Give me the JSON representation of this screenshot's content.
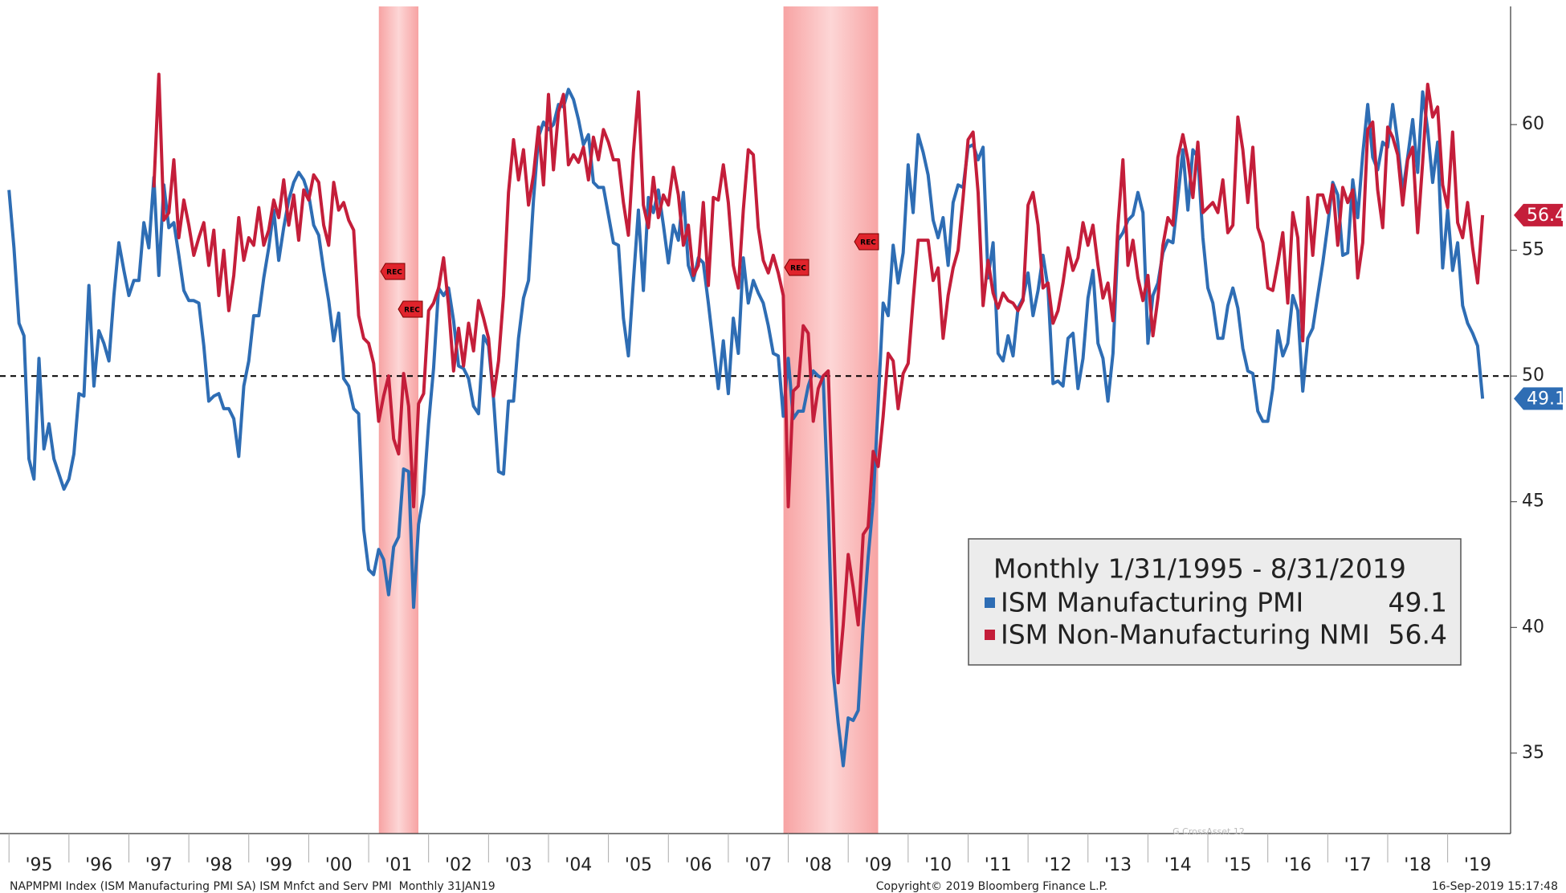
{
  "chart_data": {
    "type": "line",
    "legend_title": "Monthly 1/31/1995 - 8/31/2019",
    "recession_label": "REC",
    "recessions": [
      {
        "start": 2001.17,
        "end": 2001.83
      },
      {
        "start": 2007.92,
        "end": 2009.5
      }
    ],
    "reference_line": 50,
    "xlim": [
      1994.85,
      2020.05
    ],
    "xticks": [
      {
        "value": 1995,
        "label": "'95"
      },
      {
        "value": 1996,
        "label": "'96"
      },
      {
        "value": 1997,
        "label": "'97"
      },
      {
        "value": 1998,
        "label": "'98"
      },
      {
        "value": 1999,
        "label": "'99"
      },
      {
        "value": 2000,
        "label": "'00"
      },
      {
        "value": 2001,
        "label": "'01"
      },
      {
        "value": 2002,
        "label": "'02"
      },
      {
        "value": 2003,
        "label": "'03"
      },
      {
        "value": 2004,
        "label": "'04"
      },
      {
        "value": 2005,
        "label": "'05"
      },
      {
        "value": 2006,
        "label": "'06"
      },
      {
        "value": 2007,
        "label": "'07"
      },
      {
        "value": 2008,
        "label": "'08"
      },
      {
        "value": 2009,
        "label": "'09"
      },
      {
        "value": 2010,
        "label": "'10"
      },
      {
        "value": 2011,
        "label": "'11"
      },
      {
        "value": 2012,
        "label": "'12"
      },
      {
        "value": 2013,
        "label": "'13"
      },
      {
        "value": 2014,
        "label": "'14"
      },
      {
        "value": 2015,
        "label": "'15"
      },
      {
        "value": 2016,
        "label": "'16"
      },
      {
        "value": 2017,
        "label": "'17"
      },
      {
        "value": 2018,
        "label": "'18"
      },
      {
        "value": 2019,
        "label": "'19"
      }
    ],
    "ylim": [
      31.8,
      64.7
    ],
    "yticks": [
      35,
      40,
      45,
      50,
      55,
      60
    ],
    "x": [
      1995,
      1995.083,
      1995.167,
      1995.25,
      1995.333,
      1995.417,
      1995.5,
      1995.583,
      1995.667,
      1995.75,
      1995.833,
      1995.917,
      1996,
      1996.083,
      1996.167,
      1996.25,
      1996.333,
      1996.417,
      1996.5,
      1996.583,
      1996.667,
      1996.75,
      1996.833,
      1996.917,
      1997,
      1997.083,
      1997.167,
      1997.25,
      1997.333,
      1997.417,
      1997.5,
      1997.583,
      1997.667,
      1997.75,
      1997.833,
      1997.917,
      1998,
      1998.083,
      1998.167,
      1998.25,
      1998.333,
      1998.417,
      1998.5,
      1998.583,
      1998.667,
      1998.75,
      1998.833,
      1998.917,
      1999,
      1999.083,
      1999.167,
      1999.25,
      1999.333,
      1999.417,
      1999.5,
      1999.583,
      1999.667,
      1999.75,
      1999.833,
      1999.917,
      2000,
      2000.083,
      2000.167,
      2000.25,
      2000.333,
      2000.417,
      2000.5,
      2000.583,
      2000.667,
      2000.75,
      2000.833,
      2000.917,
      2001,
      2001.083,
      2001.167,
      2001.25,
      2001.333,
      2001.417,
      2001.5,
      2001.583,
      2001.667,
      2001.75,
      2001.833,
      2001.917,
      2002,
      2002.083,
      2002.167,
      2002.25,
      2002.333,
      2002.417,
      2002.5,
      2002.583,
      2002.667,
      2002.75,
      2002.833,
      2002.917,
      2003,
      2003.083,
      2003.167,
      2003.25,
      2003.333,
      2003.417,
      2003.5,
      2003.583,
      2003.667,
      2003.75,
      2003.833,
      2003.917,
      2004,
      2004.083,
      2004.167,
      2004.25,
      2004.333,
      2004.417,
      2004.5,
      2004.583,
      2004.667,
      2004.75,
      2004.833,
      2004.917,
      2005,
      2005.083,
      2005.167,
      2005.25,
      2005.333,
      2005.417,
      2005.5,
      2005.583,
      2005.667,
      2005.75,
      2005.833,
      2005.917,
      2006,
      2006.083,
      2006.167,
      2006.25,
      2006.333,
      2006.417,
      2006.5,
      2006.583,
      2006.667,
      2006.75,
      2006.833,
      2006.917,
      2007,
      2007.083,
      2007.167,
      2007.25,
      2007.333,
      2007.417,
      2007.5,
      2007.583,
      2007.667,
      2007.75,
      2007.833,
      2007.917,
      2008,
      2008.083,
      2008.167,
      2008.25,
      2008.333,
      2008.417,
      2008.5,
      2008.583,
      2008.667,
      2008.75,
      2008.833,
      2008.917,
      2009,
      2009.083,
      2009.167,
      2009.25,
      2009.333,
      2009.417,
      2009.5,
      2009.583,
      2009.667,
      2009.75,
      2009.833,
      2009.917,
      2010,
      2010.083,
      2010.167,
      2010.25,
      2010.333,
      2010.417,
      2010.5,
      2010.583,
      2010.667,
      2010.75,
      2010.833,
      2010.917,
      2011,
      2011.083,
      2011.167,
      2011.25,
      2011.333,
      2011.417,
      2011.5,
      2011.583,
      2011.667,
      2011.75,
      2011.833,
      2011.917,
      2012,
      2012.083,
      2012.167,
      2012.25,
      2012.333,
      2012.417,
      2012.5,
      2012.583,
      2012.667,
      2012.75,
      2012.833,
      2012.917,
      2013,
      2013.083,
      2013.167,
      2013.25,
      2013.333,
      2013.417,
      2013.5,
      2013.583,
      2013.667,
      2013.75,
      2013.833,
      2013.917,
      2014,
      2014.083,
      2014.167,
      2014.25,
      2014.333,
      2014.417,
      2014.5,
      2014.583,
      2014.667,
      2014.75,
      2014.833,
      2014.917,
      2015,
      2015.083,
      2015.167,
      2015.25,
      2015.333,
      2015.417,
      2015.5,
      2015.583,
      2015.667,
      2015.75,
      2015.833,
      2015.917,
      2016,
      2016.083,
      2016.167,
      2016.25,
      2016.333,
      2016.417,
      2016.5,
      2016.583,
      2016.667,
      2016.75,
      2016.833,
      2016.917,
      2017,
      2017.083,
      2017.167,
      2017.25,
      2017.333,
      2017.417,
      2017.5,
      2017.583,
      2017.667,
      2017.75,
      2017.833,
      2017.917,
      2018,
      2018.083,
      2018.167,
      2018.25,
      2018.333,
      2018.417,
      2018.5,
      2018.583,
      2018.667,
      2018.75,
      2018.833,
      2018.917,
      2019,
      2019.083,
      2019.167,
      2019.25,
      2019.333,
      2019.417,
      2019.5,
      2019.583
    ],
    "series": [
      {
        "name": "ISM Manufacturing PMI",
        "color": "#2e6db4",
        "values": [
          57.4,
          55.1,
          52.1,
          51.6,
          46.7,
          45.9,
          50.7,
          47.1,
          48.1,
          46.7,
          46.1,
          45.5,
          45.9,
          46.9,
          49.3,
          49.2,
          53.6,
          49.6,
          51.8,
          51.3,
          50.6,
          53.2,
          55.3,
          54.2,
          53.2,
          53.8,
          53.8,
          56.1,
          55.1,
          57.9,
          54.0,
          57.6,
          55.9,
          56.1,
          54.8,
          53.4,
          53.0,
          53.0,
          52.9,
          51.2,
          49.0,
          49.2,
          49.3,
          48.7,
          48.7,
          48.3,
          46.8,
          49.6,
          50.6,
          52.4,
          52.4,
          53.9,
          55.1,
          56.6,
          54.6,
          55.9,
          57.0,
          57.7,
          58.1,
          57.8,
          57.2,
          56.0,
          55.6,
          54.2,
          53.0,
          51.4,
          52.5,
          49.9,
          49.6,
          48.7,
          48.5,
          43.9,
          42.3,
          42.1,
          43.1,
          42.7,
          41.3,
          43.2,
          43.6,
          46.3,
          46.2,
          40.8,
          44.1,
          45.3,
          48.1,
          50.3,
          53.5,
          53.2,
          53.5,
          52.2,
          50.4,
          50.3,
          49.9,
          48.8,
          48.5,
          51.6,
          51.2,
          49.1,
          46.2,
          46.1,
          49.0,
          49.0,
          51.5,
          53.1,
          53.8,
          57.0,
          59.5,
          60.1,
          59.8,
          60.0,
          60.8,
          60.7,
          61.4,
          61.0,
          60.2,
          59.2,
          59.6,
          57.7,
          57.5,
          57.5,
          56.4,
          55.3,
          55.2,
          52.3,
          50.8,
          53.8,
          56.6,
          53.4,
          57.1,
          56.5,
          57.4,
          56.0,
          54.5,
          56.0,
          55.4,
          57.3,
          54.4,
          53.8,
          54.7,
          54.5,
          52.9,
          51.2,
          49.5,
          51.4,
          49.3,
          52.3,
          50.9,
          54.7,
          52.9,
          53.8,
          53.3,
          52.9,
          52.0,
          50.9,
          50.8,
          48.4,
          50.7,
          48.3,
          48.6,
          48.6,
          49.6,
          50.2,
          50.0,
          49.9,
          44.8,
          38.2,
          36.2,
          34.5,
          36.4,
          36.3,
          36.7,
          40.1,
          42.8,
          45.0,
          48.9,
          52.9,
          52.4,
          55.2,
          53.7,
          54.9,
          58.4,
          56.5,
          59.6,
          58.9,
          58.0,
          56.2,
          55.5,
          56.3,
          54.4,
          56.9,
          57.6,
          57.5,
          59.1,
          59.2,
          58.6,
          59.1,
          53.9,
          55.3,
          50.9,
          50.6,
          51.6,
          50.8,
          52.7,
          53.1,
          54.1,
          52.4,
          53.4,
          54.8,
          53.5,
          49.7,
          49.8,
          49.6,
          51.5,
          51.7,
          49.5,
          50.7,
          53.1,
          54.2,
          51.3,
          50.7,
          49.0,
          50.9,
          55.4,
          55.7,
          56.2,
          56.4,
          57.3,
          56.5,
          51.3,
          53.2,
          53.7,
          54.9,
          55.4,
          55.3,
          57.1,
          59.0,
          56.6,
          59.0,
          58.7,
          55.5,
          53.5,
          52.9,
          51.5,
          51.5,
          52.8,
          53.5,
          52.7,
          51.1,
          50.2,
          50.1,
          48.6,
          48.2,
          48.2,
          49.5,
          51.8,
          50.8,
          51.3,
          53.2,
          52.6,
          49.4,
          51.5,
          51.9,
          53.2,
          54.5,
          56.0,
          57.7,
          57.2,
          54.8,
          54.9,
          57.8,
          56.3,
          58.8,
          60.8,
          58.7,
          58.2,
          59.3,
          59.1,
          60.8,
          59.3,
          57.3,
          58.7,
          60.2,
          58.1,
          61.3,
          59.8,
          57.7,
          59.3,
          54.3,
          56.6,
          54.2,
          55.3,
          52.8,
          52.1,
          51.7,
          51.2,
          49.1
        ]
      },
      {
        "name": "ISM Non-Manufacturing NMI",
        "color": "#c41e3a",
        "values": [
          null,
          null,
          null,
          null,
          null,
          null,
          null,
          null,
          null,
          null,
          null,
          null,
          null,
          null,
          null,
          null,
          null,
          null,
          null,
          null,
          null,
          null,
          null,
          null,
          null,
          null,
          null,
          null,
          null,
          57.5,
          62.0,
          56.2,
          56.5,
          58.6,
          55.5,
          57.0,
          56.0,
          54.8,
          55.5,
          56.1,
          54.4,
          55.8,
          53.2,
          55.0,
          52.6,
          54.0,
          56.3,
          54.6,
          55.5,
          55.2,
          56.7,
          55.2,
          55.8,
          57.0,
          56.3,
          57.8,
          56.0,
          57.2,
          55.4,
          57.4,
          57.0,
          58.0,
          57.7,
          56.0,
          55.2,
          57.7,
          56.6,
          56.9,
          56.2,
          55.8,
          52.4,
          51.5,
          51.3,
          50.5,
          48.2,
          49.2,
          50.0,
          47.5,
          46.9,
          50.1,
          48.8,
          44.8,
          48.9,
          49.3,
          52.6,
          52.9,
          53.5,
          54.7,
          52.8,
          50.2,
          51.9,
          50.4,
          52.1,
          51.0,
          53.0,
          52.3,
          51.5,
          49.2,
          50.6,
          53.2,
          57.3,
          59.4,
          57.8,
          59.0,
          56.8,
          58.0,
          59.9,
          57.6,
          61.2,
          58.2,
          60.5,
          61.2,
          58.4,
          58.8,
          58.5,
          59.1,
          57.8,
          59.5,
          58.6,
          59.8,
          59.3,
          58.6,
          58.6,
          56.9,
          55.6,
          58.9,
          61.3,
          56.8,
          55.9,
          57.9,
          56.3,
          57.2,
          56.8,
          58.3,
          57.2,
          55.2,
          56.0,
          54.0,
          54.4,
          56.9,
          53.6,
          57.1,
          57.0,
          58.4,
          56.9,
          54.4,
          53.5,
          56.6,
          59.0,
          58.8,
          55.9,
          54.6,
          54.1,
          54.8,
          54.1,
          53.2,
          44.8,
          49.4,
          49.6,
          52.0,
          51.7,
          48.2,
          49.5,
          50.0,
          50.2,
          44.4,
          37.8,
          40.1,
          42.9,
          41.6,
          40.1,
          43.7,
          44.0,
          47.0,
          46.4,
          48.4,
          50.9,
          50.6,
          48.7,
          50.1,
          50.5,
          53.0,
          55.4,
          55.4,
          55.4,
          53.8,
          54.3,
          51.5,
          53.2,
          54.3,
          55.0,
          57.1,
          59.4,
          59.7,
          57.3,
          52.8,
          54.6,
          53.3,
          52.7,
          53.3,
          53.0,
          52.9,
          52.6,
          53.0,
          56.8,
          57.3,
          56.0,
          53.5,
          53.7,
          52.1,
          52.6,
          53.7,
          55.1,
          54.2,
          54.7,
          56.1,
          55.2,
          56.0,
          54.4,
          53.1,
          53.7,
          52.2,
          56.0,
          58.6,
          54.4,
          55.4,
          53.9,
          53.0,
          54.0,
          51.6,
          53.1,
          55.2,
          56.3,
          56.0,
          58.7,
          59.6,
          58.6,
          57.1,
          59.3,
          56.5,
          56.7,
          56.9,
          56.5,
          57.8,
          55.7,
          56.0,
          60.3,
          59.0,
          56.9,
          59.1,
          55.9,
          55.3,
          53.5,
          53.4,
          54.5,
          55.7,
          52.9,
          56.5,
          55.5,
          51.4,
          57.1,
          54.8,
          57.2,
          57.2,
          56.5,
          57.6,
          55.2,
          57.5,
          56.9,
          57.4,
          53.9,
          55.3,
          59.8,
          60.1,
          57.4,
          55.9,
          59.9,
          59.5,
          58.8,
          56.8,
          58.6,
          59.1,
          55.7,
          58.5,
          61.6,
          60.3,
          60.7,
          57.6,
          56.7,
          59.7,
          56.1,
          55.5,
          56.9,
          55.1,
          53.7,
          56.4
        ]
      }
    ],
    "watermark": "G CrossAsset 12",
    "footer_left": "NAPMPMI Index (ISM Manufacturing PMI SA) ISM Mnfct and Serv PMI  Monthly 31JAN19",
    "footer_center": "Copyright© 2019 Bloomberg Finance L.P.",
    "footer_right": "16-Sep-2019 15:17:48"
  }
}
